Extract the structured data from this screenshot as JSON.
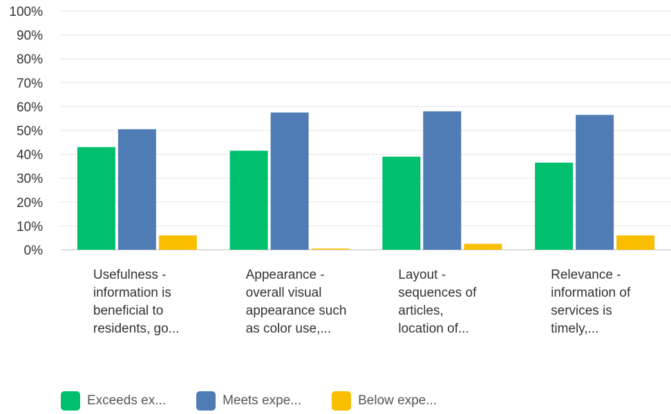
{
  "chart_data": {
    "type": "bar",
    "categories": [
      [
        "Usefulness -",
        "information is",
        "beneficial to",
        "residents, go..."
      ],
      [
        "Appearance -",
        "overall visual",
        "appearance such",
        "as color use,..."
      ],
      [
        "Layout -",
        "sequences of",
        "articles,",
        "location of..."
      ],
      [
        "Relevance -",
        "information of",
        "services is",
        "timely,..."
      ]
    ],
    "series": [
      {
        "name": "Exceeds ex...",
        "color": "#00bf6f",
        "values": [
          43,
          41.5,
          39,
          36.5
        ]
      },
      {
        "name": "Meets expe...",
        "color": "#507cb6",
        "values": [
          50.5,
          57.5,
          58,
          56.5
        ]
      },
      {
        "name": "Below expe...",
        "color": "#f9be00",
        "values": [
          6,
          0.5,
          2.5,
          6
        ]
      }
    ],
    "ylim": [
      0,
      100
    ],
    "y_ticks": [
      "0%",
      "10%",
      "20%",
      "30%",
      "40%",
      "50%",
      "60%",
      "70%",
      "80%",
      "90%",
      "100%"
    ],
    "grid": true,
    "legend_position": "bottom-left"
  }
}
